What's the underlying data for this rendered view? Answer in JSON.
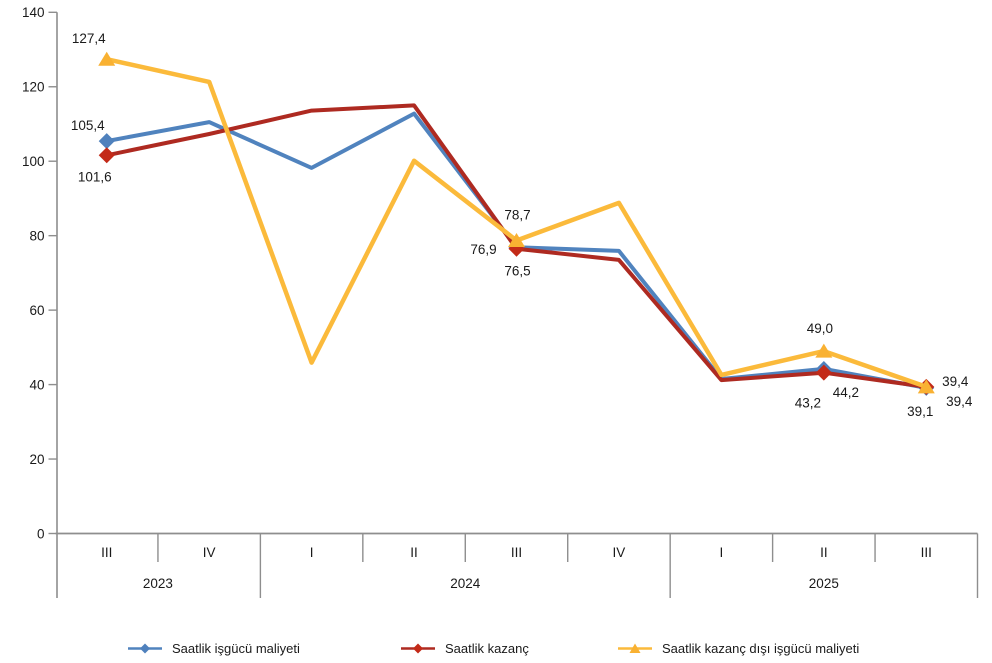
{
  "chart_data": {
    "type": "line",
    "title": "",
    "xlabel": "",
    "ylabel": "",
    "grid": false,
    "legend_position": "bottom",
    "y_axis": {
      "min": 0,
      "max": 140,
      "step": 20,
      "tick_labels": [
        "0",
        "20",
        "40",
        "60",
        "80",
        "100",
        "120",
        "140"
      ]
    },
    "x_axis": {
      "quarters": [
        "III",
        "IV",
        "I",
        "II",
        "III",
        "IV",
        "I",
        "II",
        "III"
      ],
      "year_groups": [
        {
          "label": "2023",
          "span": 2
        },
        {
          "label": "2024",
          "span": 4
        },
        {
          "label": "2025",
          "span": 3
        }
      ]
    },
    "series": [
      {
        "name": "Saatlik işgücü maliyeti",
        "color": "#5083BE",
        "marker_color": "#4F81BD",
        "marker": "diamond",
        "values": [
          105.4,
          110.5,
          98.2,
          112.8,
          76.9,
          75.9,
          41.5,
          44.2,
          39.1
        ],
        "point_labels": {
          "0": "105,4",
          "4": "76,9",
          "7": "44,2",
          "8": "39,1"
        }
      },
      {
        "name": "Saatlik kazanç",
        "color": "#AE2A21",
        "marker_color": "#C32A18",
        "marker": "diamond",
        "values": [
          101.6,
          107.3,
          113.6,
          115.0,
          76.5,
          73.5,
          41.2,
          43.2,
          39.4
        ],
        "point_labels": {
          "0": "101,6",
          "4": "76,5",
          "7": "43,2",
          "8": "39,4"
        }
      },
      {
        "name": "Saatlik kazanç dışı işgücü maliyeti",
        "color": "#FBBA3B",
        "marker_color": "#F9B132",
        "marker": "triangle",
        "values": [
          127.4,
          121.3,
          45.9,
          100.1,
          78.7,
          88.8,
          42.6,
          49.0,
          39.4
        ],
        "point_labels": {
          "0": "127,4",
          "4": "78,7",
          "7": "49,0",
          "8": "39,4"
        }
      }
    ],
    "legend": [
      "Saatlik işgücü maliyeti",
      "Saatlik kazanç",
      "Saatlik kazanç dışı işgücü maliyeti"
    ]
  },
  "colors": {
    "axis": "#8E8E8E",
    "text": "#1a1a1a",
    "background": "#ffffff"
  }
}
